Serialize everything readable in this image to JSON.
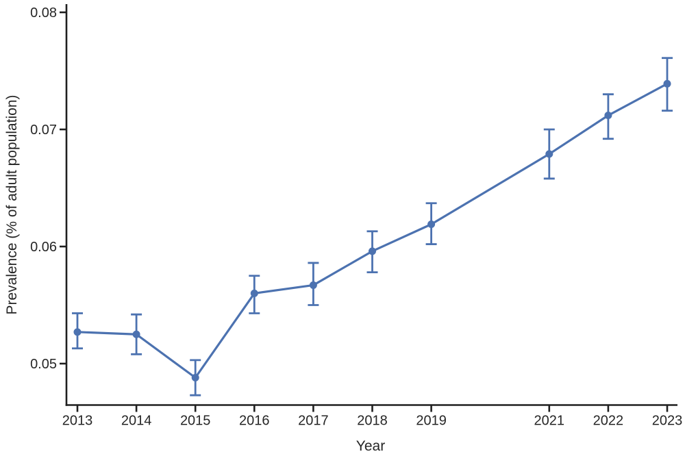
{
  "figure": {
    "background": "#ffffff"
  },
  "colors": {
    "series_blue": "#4c72b0",
    "axis": "#1f1f1f",
    "text": "#262626",
    "background": "#ffffff"
  },
  "chart_data": {
    "type": "line",
    "title": "",
    "xlabel": "Year",
    "ylabel": "Prevalence (% of adult population)",
    "x": [
      2013,
      2014,
      2015,
      2016,
      2017,
      2018,
      2019,
      2021,
      2022,
      2023
    ],
    "x_tick_labels": [
      "2013",
      "2014",
      "2015",
      "2016",
      "2017",
      "2018",
      "2019",
      "2021",
      "2022",
      "2023"
    ],
    "y_ticks": [
      0.05,
      0.06,
      0.07,
      0.08
    ],
    "y_tick_labels": [
      "0.05",
      "0.06",
      "0.07",
      "0.08"
    ],
    "xlim": [
      2012.81,
      2023.17
    ],
    "ylim": [
      0.0464,
      0.0807
    ],
    "grid": false,
    "legend_position": "none",
    "error_bars": true,
    "marker": "circle",
    "series": [
      {
        "name": "Prevalence",
        "color": "#4c72b0",
        "values": [
          0.0527,
          0.0525,
          0.0488,
          0.056,
          0.0567,
          0.0596,
          0.0619,
          0.0679,
          0.0712,
          0.0739
        ],
        "ci_low": [
          0.0513,
          0.0508,
          0.0473,
          0.0543,
          0.055,
          0.0578,
          0.0602,
          0.0658,
          0.0692,
          0.0716
        ],
        "ci_high": [
          0.0543,
          0.0542,
          0.0503,
          0.0575,
          0.0586,
          0.0613,
          0.0637,
          0.07,
          0.073,
          0.0761
        ]
      }
    ]
  }
}
